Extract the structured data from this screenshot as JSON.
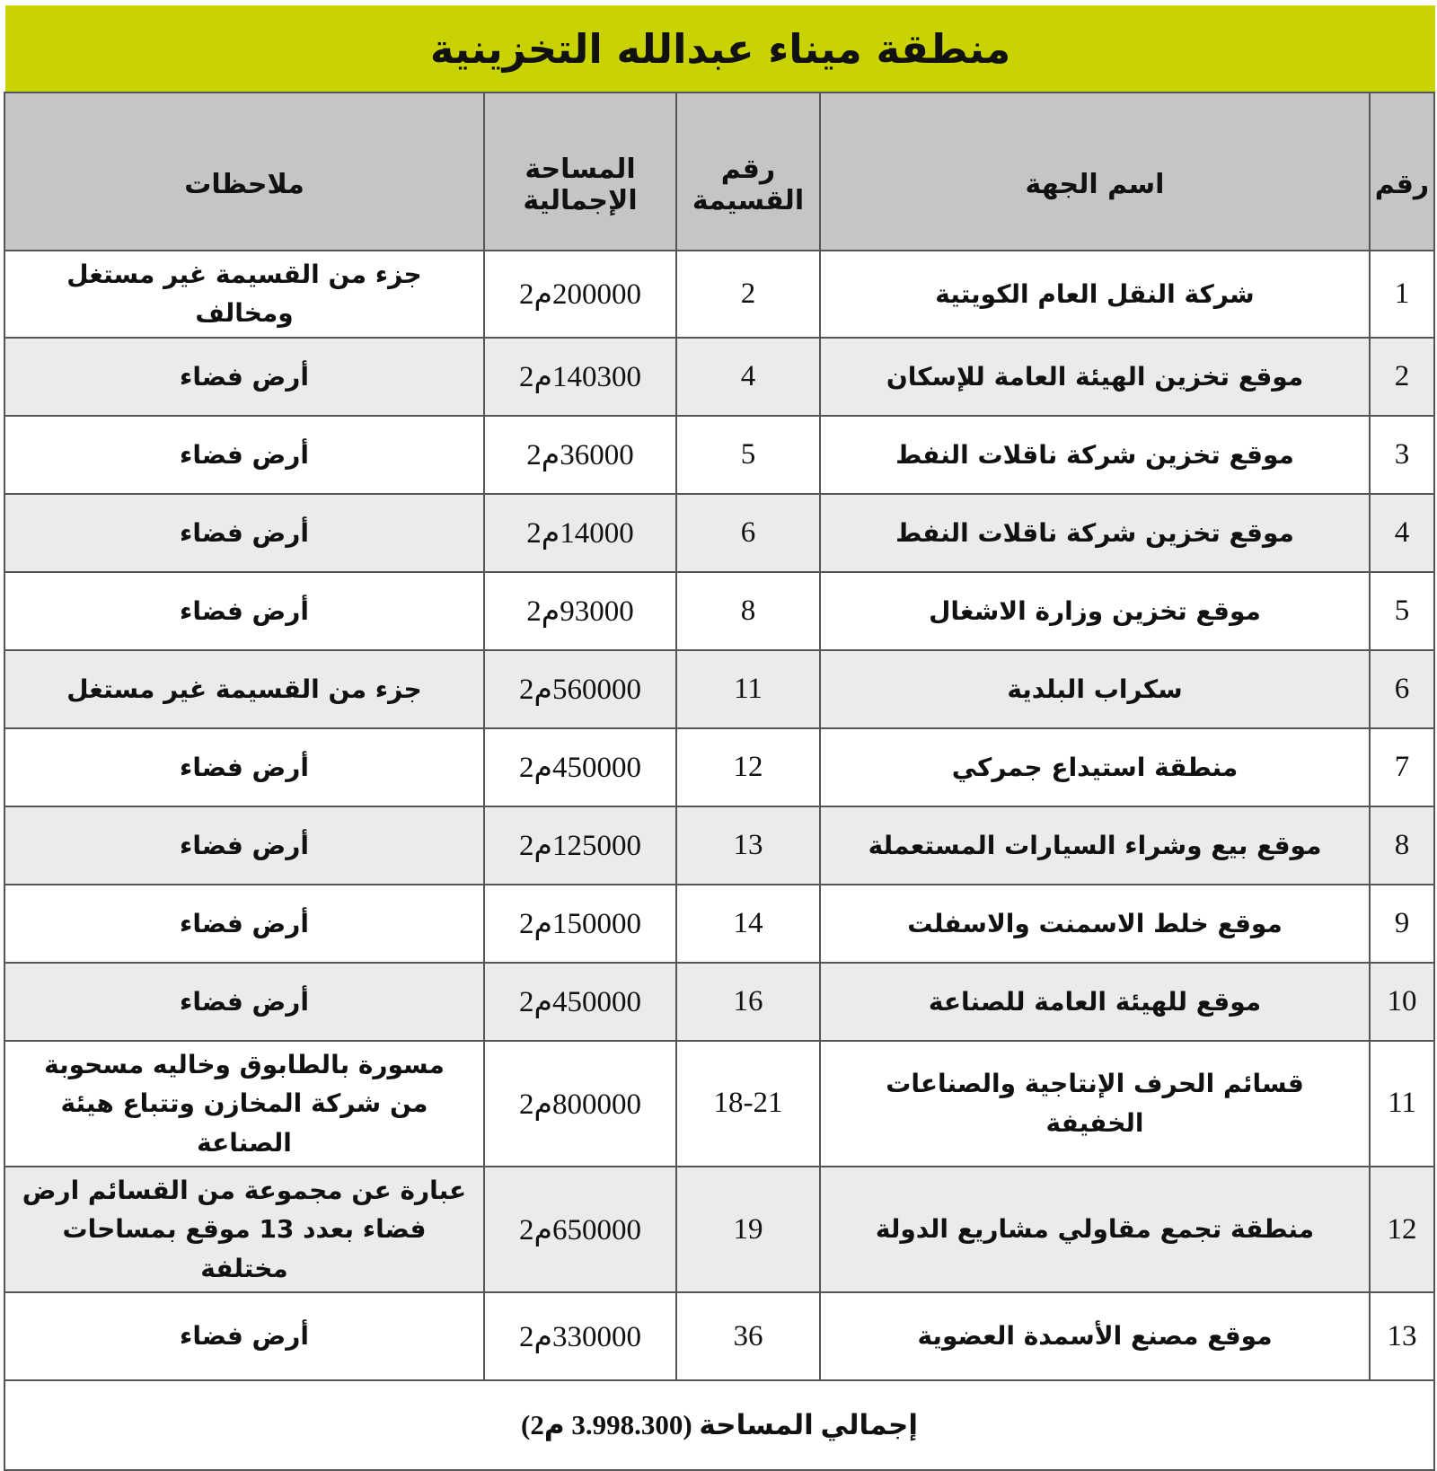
{
  "title": "منطقة ميناء عبدالله التخزينية",
  "table": {
    "headers": {
      "num": "رقم",
      "name": "اسم الجهة",
      "plot": "رقم القسيمة",
      "area": "المساحة الإجمالية",
      "notes": "ملاحظات"
    },
    "rows": [
      {
        "num": "1",
        "name": "شركة النقل العام الكويتية",
        "plot": "2",
        "area": "200000م2",
        "notes": "جزء من القسيمة غير مستغل ومخالف"
      },
      {
        "num": "2",
        "name": "موقع تخزين الهيئة العامة للإسكان",
        "plot": "4",
        "area": "140300م2",
        "notes": "أرض فضاء"
      },
      {
        "num": "3",
        "name": "موقع تخزين شركة ناقلات النفط",
        "plot": "5",
        "area": "36000م2",
        "notes": "أرض فضاء"
      },
      {
        "num": "4",
        "name": "موقع تخزين شركة ناقلات النفط",
        "plot": "6",
        "area": "14000م2",
        "notes": "أرض فضاء"
      },
      {
        "num": "5",
        "name": "موقع تخزين وزارة الاشغال",
        "plot": "8",
        "area": "93000م2",
        "notes": "أرض فضاء"
      },
      {
        "num": "6",
        "name": "سكراب البلدية",
        "plot": "11",
        "area": "560000م2",
        "notes": "جزء من القسيمة غير مستغل"
      },
      {
        "num": "7",
        "name": "منطقة استيداع جمركي",
        "plot": "12",
        "area": "450000م2",
        "notes": "أرض فضاء"
      },
      {
        "num": "8",
        "name": "موقع بيع وشراء السيارات المستعملة",
        "plot": "13",
        "area": "125000م2",
        "notes": "أرض فضاء"
      },
      {
        "num": "9",
        "name": "موقع خلط الاسمنت والاسفلت",
        "plot": "14",
        "area": "150000م2",
        "notes": "أرض فضاء"
      },
      {
        "num": "10",
        "name": "موقع للهيئة العامة للصناعة",
        "plot": "16",
        "area": "450000م2",
        "notes": "أرض فضاء"
      },
      {
        "num": "11",
        "name": "قسائم الحرف الإنتاجية والصناعات الخفيفة",
        "plot": "18-21",
        "area": "800000م2",
        "notes": "مسورة بالطابوق وخاليه مسحوبة من شركة المخازن وتتباع هيئة الصناعة"
      },
      {
        "num": "12",
        "name": "منطقة تجمع مقاولي مشاريع الدولة",
        "plot": "19",
        "area": "650000م2",
        "notes": "عبارة عن مجموعة من القسائم ارض فضاء بعدد 13 موقع بمساحات مختلفة"
      },
      {
        "num": "13",
        "name": "موقع مصنع الأسمدة العضوية",
        "plot": "36",
        "area": "330000م2",
        "notes": "أرض فضاء"
      }
    ],
    "footer": "إجمالي المساحة (3.998.300 م2)"
  },
  "colors": {
    "title_bg": "#c9d301",
    "header_bg": "#c5c5c5",
    "row_alt_bg": "#ebebeb",
    "border": "#555555",
    "text": "#111111"
  }
}
